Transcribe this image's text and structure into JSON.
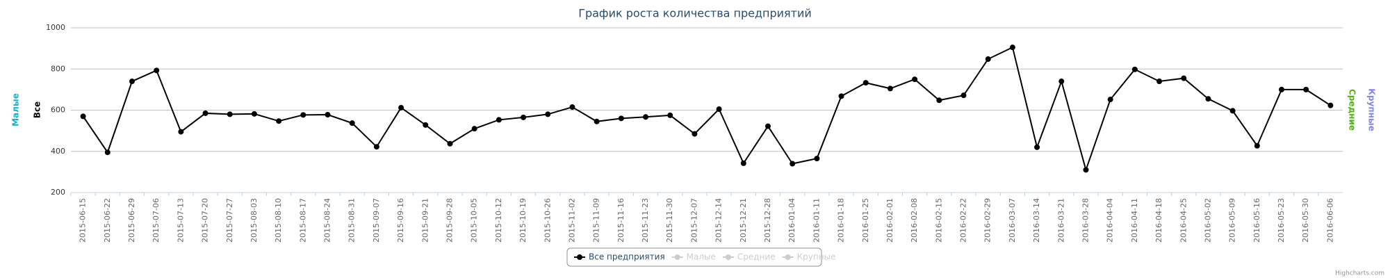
{
  "chart_data": {
    "type": "line",
    "title": "График роста количества предприятий",
    "categories": [
      "2015-06-15",
      "2015-06-22",
      "2015-06-29",
      "2015-07-06",
      "2015-07-13",
      "2015-07-20",
      "2015-07-27",
      "2015-08-03",
      "2015-08-10",
      "2015-08-17",
      "2015-08-24",
      "2015-08-31",
      "2015-09-07",
      "2015-09-16",
      "2015-09-21",
      "2015-09-28",
      "2015-10-05",
      "2015-10-12",
      "2015-10-19",
      "2015-10-26",
      "2015-11-02",
      "2015-11-09",
      "2015-11-16",
      "2015-11-23",
      "2015-11-30",
      "2015-12-07",
      "2015-12-14",
      "2015-12-21",
      "2015-12-28",
      "2016-01-04",
      "2016-01-11",
      "2016-01-18",
      "2016-01-25",
      "2016-02-01",
      "2016-02-08",
      "2016-02-15",
      "2016-02-22",
      "2016-02-29",
      "2016-03-07",
      "2016-03-14",
      "2016-03-21",
      "2016-03-28",
      "2016-04-04",
      "2016-04-11",
      "2016-04-18",
      "2016-04-25",
      "2016-05-02",
      "2016-05-09",
      "2016-05-16",
      "2016-05-23",
      "2016-05-30",
      "2016-06-06"
    ],
    "series": [
      {
        "name": "Все предприятия",
        "color": "#000000",
        "values": [
          570,
          395,
          740,
          793,
          495,
          585,
          580,
          582,
          547,
          577,
          578,
          537,
          422,
          612,
          528,
          437,
          510,
          553,
          565,
          580,
          615,
          545,
          560,
          567,
          575,
          485,
          605,
          342,
          522,
          340,
          365,
          668,
          733,
          705,
          750,
          648,
          672,
          848,
          905,
          420,
          740,
          310,
          652,
          798,
          740,
          755,
          655,
          597,
          427,
          700,
          700,
          623
        ]
      }
    ],
    "hidden_legend": [
      "Малые",
      "Средние",
      "Крупные"
    ],
    "axis_titles": [
      {
        "text": "Малые",
        "color": "#1aadce"
      },
      {
        "text": "Все",
        "color": "#000000"
      },
      {
        "text": "Средние",
        "color": "#4cb30f"
      },
      {
        "text": "Крупные",
        "color": "#8085e9"
      }
    ],
    "ylim": [
      200,
      1000
    ],
    "yticks": [
      200,
      400,
      600,
      800,
      1000
    ],
    "grid": true,
    "credits": "Highcharts.com"
  }
}
